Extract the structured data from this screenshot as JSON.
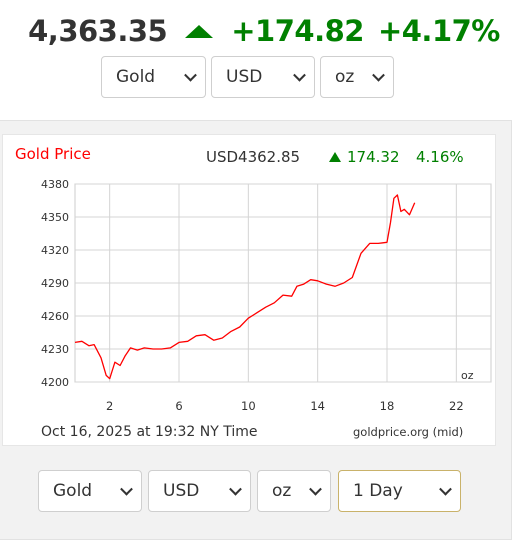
{
  "ticker": {
    "price": "4,363.35",
    "change": "+174.82",
    "change_pct": "+4.17%",
    "direction": "up",
    "up_color": "#008000"
  },
  "selectors_top": {
    "metal": "Gold",
    "currency": "USD",
    "unit": "oz"
  },
  "chart_header": {
    "title": "Gold Price",
    "title_color": "#ff0000",
    "price": "USD4362.85",
    "change": "174.32",
    "change_pct": "4.16%"
  },
  "chart_footer": {
    "timestamp": "Oct 16, 2025 at 19:32 NY Time",
    "source": "goldprice.org (mid)",
    "unit_label": "oz"
  },
  "chart_data": {
    "type": "line",
    "title": "Gold Price",
    "xlabel": "",
    "ylabel": "",
    "xlim": [
      0,
      24
    ],
    "ylim": [
      4200,
      4380
    ],
    "x_ticks": [
      2,
      6,
      10,
      14,
      18,
      22
    ],
    "y_ticks": [
      4200,
      4230,
      4260,
      4290,
      4320,
      4350,
      4380
    ],
    "grid": true,
    "line_color": "#ff0000",
    "series": [
      {
        "name": "",
        "x": [
          0.0,
          0.4,
          0.8,
          1.1,
          1.5,
          1.8,
          2.0,
          2.3,
          2.6,
          2.9,
          3.2,
          3.6,
          4.0,
          4.5,
          5.0,
          5.5,
          6.0,
          6.5,
          7.0,
          7.5,
          8.0,
          8.5,
          9.0,
          9.5,
          10.0,
          10.5,
          11.0,
          11.5,
          12.0,
          12.5,
          12.8,
          13.2,
          13.6,
          14.0,
          14.5,
          15.0,
          15.5,
          16.0,
          16.5,
          17.0,
          17.5,
          18.0,
          18.2,
          18.4,
          18.6,
          18.8,
          19.0,
          19.3,
          19.6
        ],
        "y": [
          4236,
          4237,
          4233,
          4234,
          4222,
          4206,
          4203,
          4218,
          4215,
          4224,
          4231,
          4229,
          4231,
          4230,
          4230,
          4231,
          4236,
          4237,
          4242,
          4243,
          4238,
          4240,
          4246,
          4250,
          4258,
          4263,
          4268,
          4272,
          4279,
          4278,
          4287,
          4289,
          4293,
          4292,
          4289,
          4287,
          4290,
          4295,
          4317,
          4326,
          4326,
          4327,
          4345,
          4367,
          4370,
          4355,
          4357,
          4352,
          4363
        ]
      }
    ]
  },
  "selectors_bottom": {
    "metal": "Gold",
    "currency": "USD",
    "unit": "oz",
    "period": "1 Day"
  }
}
